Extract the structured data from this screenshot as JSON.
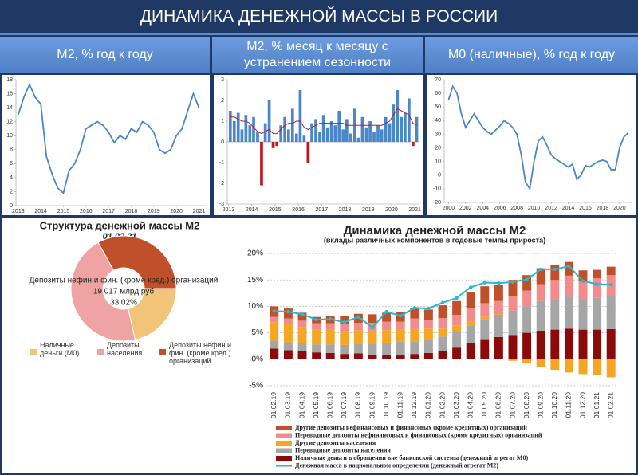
{
  "header": {
    "title": "ДИНАМИКА ДЕНЕЖНОЙ МАССЫ В РОССИИ",
    "panels": [
      "M2, % год к году",
      "M2, % месяц к месяцу с устранением сезонности",
      "M0 (наличные), % год к году"
    ]
  },
  "chart_data": [
    {
      "type": "line",
      "color": "#4a86c8",
      "x": [
        2013,
        2013.25,
        2013.5,
        2013.75,
        2014,
        2014.25,
        2014.5,
        2014.75,
        2015,
        2015.25,
        2015.5,
        2015.75,
        2016,
        2016.25,
        2016.5,
        2016.75,
        2017,
        2017.25,
        2017.5,
        2017.75,
        2018,
        2018.25,
        2018.5,
        2018.75,
        2019,
        2019.25,
        2019.5,
        2019.75,
        2020,
        2020.25,
        2020.5,
        2020.75,
        2021
      ],
      "values": [
        13,
        15.5,
        17.3,
        15.5,
        14.5,
        7,
        4.5,
        2.5,
        1.8,
        5,
        6,
        8,
        11,
        11.5,
        12,
        11.5,
        10.5,
        9,
        10,
        9.5,
        11,
        10.5,
        12,
        11.5,
        10.5,
        8,
        7.5,
        8,
        10,
        11,
        13.5,
        16,
        14
      ],
      "xlim": [
        2012.9,
        2021.3
      ],
      "xticks": [
        2013,
        2014,
        2015,
        2016,
        2017,
        2018,
        2019,
        2020,
        2021
      ],
      "ylim": [
        0,
        18
      ],
      "yticks": [
        0,
        2,
        4,
        6,
        8,
        10,
        12,
        14,
        16,
        18
      ]
    },
    {
      "type": "bar",
      "x": [
        2013.08,
        2013.25,
        2013.42,
        2013.58,
        2013.75,
        2013.92,
        2014.08,
        2014.25,
        2014.42,
        2014.58,
        2014.75,
        2014.92,
        2015.08,
        2015.25,
        2015.42,
        2015.58,
        2015.75,
        2015.92,
        2016.08,
        2016.25,
        2016.42,
        2016.58,
        2016.75,
        2016.92,
        2017.08,
        2017.25,
        2017.42,
        2017.58,
        2017.75,
        2017.92,
        2018.08,
        2018.25,
        2018.42,
        2018.58,
        2018.75,
        2018.92,
        2019.08,
        2019.25,
        2019.42,
        2019.58,
        2019.75,
        2019.92,
        2020.08,
        2020.25,
        2020.42,
        2020.58,
        2020.75,
        2020.92,
        2021.08
      ],
      "series": [
        {
          "color": "#4a86c8",
          "negative_color": "#c0181c",
          "values": [
            1.5,
            1.0,
            1.4,
            0.6,
            1.3,
            0.8,
            1.2,
            0.5,
            -2.1,
            0.9,
            2.0,
            -0.3,
            -0.2,
            0.8,
            1.2,
            0.6,
            1.6,
            0.4,
            2.5,
            0.3,
            -1.0,
            0.9,
            1.1,
            0.5,
            1.3,
            0.7,
            1.0,
            0.8,
            1.5,
            0.6,
            1.1,
            0.4,
            1.6,
            0.2,
            1.2,
            0.7,
            1.0,
            0.5,
            0.8,
            0.6,
            1.2,
            0.9,
            1.8,
            2.5,
            1.2,
            1.4,
            2.1,
            -0.2,
            1.2
          ]
        },
        {
          "type": "line",
          "color": "#c0181c",
          "values": [
            1.2,
            1.2,
            1.1,
            1.0,
            1.0,
            0.9,
            0.7,
            0.5,
            0.4,
            0.5,
            0.6,
            0.4,
            0.4,
            0.6,
            0.8,
            0.9,
            0.9,
            1.0,
            1.0,
            0.7,
            0.6,
            0.7,
            0.8,
            0.9,
            0.9,
            0.9,
            0.9,
            0.9,
            0.9,
            0.9,
            0.8,
            0.8,
            0.8,
            0.8,
            0.8,
            0.8,
            0.8,
            0.8,
            0.8,
            0.8,
            0.9,
            1.0,
            1.3,
            1.6,
            1.5,
            1.4,
            1.3,
            0.9,
            0.8
          ]
        }
      ],
      "xlim": [
        2012.95,
        2021.2
      ],
      "xticks": [
        2013,
        2014,
        2015,
        2016,
        2017,
        2018,
        2019,
        2020,
        2021
      ],
      "ylim": [
        -3,
        3
      ],
      "yticks": [
        -3,
        -2,
        -1,
        0,
        1,
        2,
        3
      ]
    },
    {
      "type": "line",
      "color": "#4a86c8",
      "x": [
        2000,
        2000.5,
        2001,
        2001.5,
        2002,
        2002.5,
        2003,
        2003.5,
        2004,
        2004.5,
        2005,
        2005.5,
        2006,
        2006.5,
        2007,
        2007.5,
        2008,
        2008.5,
        2009,
        2009.5,
        2010,
        2010.5,
        2011,
        2011.5,
        2012,
        2012.5,
        2013,
        2013.5,
        2014,
        2014.5,
        2015,
        2015.5,
        2016,
        2016.5,
        2017,
        2017.5,
        2018,
        2018.5,
        2019,
        2019.5,
        2020,
        2020.5,
        2021
      ],
      "values": [
        55,
        65,
        60,
        45,
        35,
        40,
        45,
        40,
        35,
        32,
        30,
        33,
        36,
        40,
        38,
        35,
        30,
        15,
        -5,
        -10,
        10,
        25,
        28,
        22,
        15,
        12,
        10,
        8,
        6,
        8,
        -3,
        0,
        7,
        6,
        8,
        10,
        11,
        10,
        4,
        4,
        20,
        28,
        31
      ],
      "xlim": [
        1999.5,
        2021.5
      ],
      "xticks": [
        2000,
        2002,
        2004,
        2006,
        2008,
        2010,
        2012,
        2014,
        2016,
        2018,
        2020
      ],
      "ylim": [
        -20,
        70
      ],
      "yticks": [
        -20,
        -10,
        0,
        10,
        20,
        30,
        40,
        50,
        60,
        70
      ]
    },
    {
      "type": "donut",
      "title": "Структура денежной массы M2",
      "subtitle": "01.02.21",
      "categories": [
        "Наличные деньги (M0)",
        "Депозиты населения",
        "Депозиты нефин.и фин. (кроме кред.) организаций"
      ],
      "values": [
        21.5,
        45.5,
        33.02
      ],
      "value_labels": [
        null,
        null,
        "33,02%"
      ],
      "annotations": [
        null,
        null,
        "19 017 млрд руб"
      ],
      "colors": [
        "#f2c47a",
        "#f0a3a3",
        "#c0502a"
      ]
    },
    {
      "type": "stacked_bar",
      "title": "Динамика денежной массы М2",
      "subtitle": "(вклады различных компонентов в годовые темпы прироста)",
      "categories": [
        "01.02.19",
        "01.03.19",
        "01.04.19",
        "01.05.19",
        "01.06.19",
        "01.07.19",
        "01.08.19",
        "01.09.19",
        "01.10.19",
        "01.11.19",
        "01.12.19",
        "01.01.20",
        "01.02.20",
        "01.03.20",
        "01.04.20",
        "01.05.20",
        "01.06.20",
        "01.07.20",
        "01.08.20",
        "01.09.20",
        "01.10.20",
        "01.11.20",
        "01.12.20",
        "01.01.21",
        "01.02.21"
      ],
      "series": [
        {
          "name": "Другие депозиты нефинансовых и финансовых (кроме кредитных) организаций",
          "color": "#c0502a",
          "values": [
            2.0,
            1.9,
            1.5,
            1.2,
            1.3,
            1.5,
            1.7,
            1.6,
            1.7,
            1.8,
            2.0,
            2.0,
            2.4,
            2.6,
            3.0,
            3.2,
            3.0,
            3.0,
            2.9,
            3.0,
            2.8,
            2.6,
            2.0,
            1.6,
            1.6
          ]
        },
        {
          "name": "Переводные депозиты нефинансовых и финансовых (кроме кредитных) организаций",
          "color": "#f28c8c",
          "values": [
            1.0,
            1.0,
            1.2,
            1.2,
            1.2,
            1.4,
            1.4,
            1.5,
            1.6,
            1.5,
            2.0,
            1.6,
            2.0,
            2.0,
            2.5,
            2.6,
            2.5,
            2.8,
            3.0,
            3.2,
            3.6,
            4.0,
            3.6,
            3.7,
            3.9
          ]
        },
        {
          "name": "Другие депозиты населения",
          "color": "#f5a623",
          "values": [
            3.5,
            3.5,
            3.0,
            2.8,
            2.8,
            2.6,
            2.6,
            2.5,
            2.4,
            2.3,
            2.3,
            2.0,
            1.5,
            1.2,
            0.8,
            0.4,
            0.1,
            -0.3,
            -0.8,
            -1.5,
            -2.0,
            -2.5,
            -2.8,
            -3.0,
            -3.4
          ]
        },
        {
          "name": "Переводные депозиты населения",
          "color": "#a6a6a6",
          "values": [
            1.5,
            1.5,
            1.6,
            1.5,
            1.6,
            1.7,
            1.8,
            2.0,
            2.3,
            2.5,
            2.4,
            2.6,
            2.8,
            3.0,
            3.4,
            3.8,
            4.2,
            4.6,
            5.0,
            5.6,
            5.8,
            6.0,
            5.6,
            6.0,
            6.3
          ]
        },
        {
          "name": "Наличные деньги в обращении вне банковской системы (денежный агрегат M0)",
          "color": "#8b0a0a",
          "values": [
            2.0,
            1.7,
            1.5,
            1.3,
            1.2,
            1.0,
            1.1,
            0.9,
            0.8,
            0.8,
            1.0,
            1.2,
            1.5,
            2.2,
            3.0,
            3.8,
            4.2,
            4.6,
            5.0,
            5.4,
            5.6,
            5.8,
            5.6,
            5.6,
            5.7
          ]
        },
        {
          "type": "line",
          "name": "Денежная масса в национальном определении (денежный агрегат M2)",
          "color": "#29b6cf",
          "values": [
            9.1,
            9.0,
            8.5,
            7.5,
            7.6,
            7.0,
            8.0,
            6.0,
            9.0,
            8.2,
            9.7,
            9.6,
            10.7,
            11.6,
            13.6,
            14.5,
            14.4,
            14.6,
            15.1,
            17.0,
            17.0,
            17.6,
            14.8,
            14.2,
            14.1
          ]
        }
      ],
      "ylim": [
        -5,
        20
      ],
      "yticks": [
        {
          "value": -5,
          "label": "-5%"
        },
        {
          "value": 0,
          "label": "0%"
        },
        {
          "value": 5,
          "label": "5%"
        },
        {
          "value": 10,
          "label": "10%"
        },
        {
          "value": 15,
          "label": "15%"
        },
        {
          "value": 20,
          "label": "20%"
        }
      ],
      "grid": true
    }
  ]
}
